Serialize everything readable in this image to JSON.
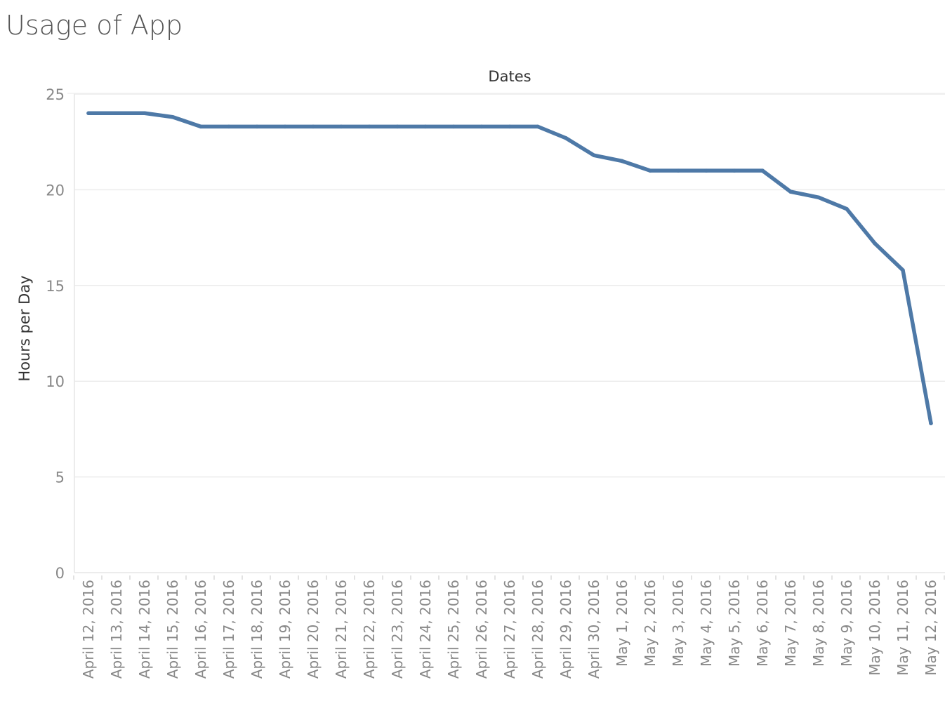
{
  "chart_data": {
    "type": "line",
    "title": "Usage of App",
    "xlabel": "Dates",
    "ylabel": "Hours per Day",
    "ylim": [
      0,
      25
    ],
    "yticks": [
      0,
      5,
      10,
      15,
      20,
      25
    ],
    "grid": true,
    "line_color": "#4e79a7",
    "categories": [
      "April 12, 2016",
      "April 13, 2016",
      "April 14, 2016",
      "April 15, 2016",
      "April 16, 2016",
      "April 17, 2016",
      "April 18, 2016",
      "April 19, 2016",
      "April 20, 2016",
      "April 21, 2016",
      "April 22, 2016",
      "April 23, 2016",
      "April 24, 2016",
      "April 25, 2016",
      "April 26, 2016",
      "April 27, 2016",
      "April 28, 2016",
      "April 29, 2016",
      "April 30, 2016",
      "May 1, 2016",
      "May 2, 2016",
      "May 3, 2016",
      "May 4, 2016",
      "May 5, 2016",
      "May 6, 2016",
      "May 7, 2016",
      "May 8, 2016",
      "May 9, 2016",
      "May 10, 2016",
      "May 11, 2016",
      "May 12, 2016"
    ],
    "values": [
      24.0,
      24.0,
      24.0,
      23.8,
      23.3,
      23.3,
      23.3,
      23.3,
      23.3,
      23.3,
      23.3,
      23.3,
      23.3,
      23.3,
      23.3,
      23.3,
      23.3,
      22.7,
      21.8,
      21.5,
      21.0,
      21.0,
      21.0,
      21.0,
      21.0,
      19.9,
      19.6,
      19.0,
      17.2,
      15.8,
      7.8
    ]
  }
}
